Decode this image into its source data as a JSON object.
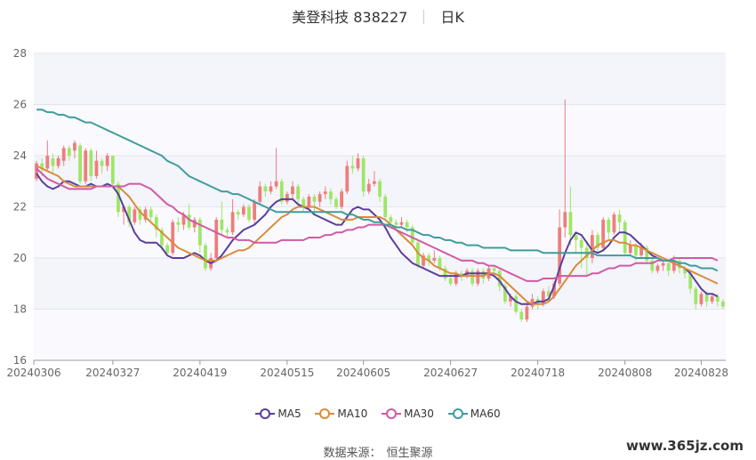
{
  "header": {
    "stock": "美登科技 838227",
    "period": "日K"
  },
  "chart_data": {
    "type": "candlestick",
    "ylim": [
      16,
      28
    ],
    "yticks": [
      16,
      18,
      20,
      22,
      24,
      26,
      28
    ],
    "x_tick_labels": [
      "20240306",
      "20240327",
      "20240419",
      "20240515",
      "20240605",
      "20240627",
      "20240718",
      "20240808",
      "20240828"
    ],
    "x_tick_index": [
      0,
      14,
      30,
      46,
      60,
      76,
      92,
      108,
      122
    ],
    "up_color": "#ee7d7d",
    "down_color": "#9ee667",
    "candles": [
      [
        23.1,
        23.7,
        23.8,
        23.0
      ],
      [
        23.7,
        23.5,
        23.9,
        23.2
      ],
      [
        23.5,
        24.0,
        24.6,
        23.4
      ],
      [
        23.9,
        23.6,
        24.1,
        23.3
      ],
      [
        23.6,
        23.9,
        24.0,
        23.5
      ],
      [
        23.8,
        24.3,
        24.4,
        23.6
      ],
      [
        24.3,
        24.0,
        24.4,
        23.8
      ],
      [
        24.2,
        24.5,
        24.6,
        23.9
      ],
      [
        24.4,
        23.0,
        24.5,
        22.9
      ],
      [
        23.0,
        24.2,
        24.3,
        22.9
      ],
      [
        24.2,
        23.2,
        24.3,
        23.0
      ],
      [
        23.2,
        23.8,
        24.2,
        23.1
      ],
      [
        23.8,
        23.6,
        23.9,
        23.3
      ],
      [
        23.6,
        24.0,
        24.1,
        23.4
      ],
      [
        24.0,
        22.9,
        24.0,
        22.7
      ],
      [
        22.9,
        21.8,
        23.0,
        21.6
      ],
      [
        21.8,
        22.0,
        22.1,
        21.3
      ],
      [
        22.0,
        21.4,
        22.1,
        21.2
      ],
      [
        21.4,
        21.9,
        22.0,
        21.3
      ],
      [
        21.9,
        21.5,
        22.0,
        21.3
      ],
      [
        21.5,
        21.9,
        22.0,
        21.4
      ],
      [
        21.9,
        21.6,
        22.0,
        21.4
      ],
      [
        21.6,
        21.1,
        21.7,
        20.8
      ],
      [
        21.1,
        20.5,
        21.2,
        20.3
      ],
      [
        20.5,
        20.2,
        20.6,
        20.1
      ],
      [
        20.2,
        21.4,
        21.5,
        20.1
      ],
      [
        21.4,
        21.3,
        21.6,
        21.0
      ],
      [
        21.3,
        21.7,
        21.8,
        21.1
      ],
      [
        21.7,
        21.2,
        22.1,
        21.1
      ],
      [
        21.2,
        21.5,
        21.6,
        21.0
      ],
      [
        21.5,
        20.5,
        21.6,
        20.2
      ],
      [
        20.5,
        19.6,
        20.6,
        19.5
      ],
      [
        19.6,
        20.0,
        20.2,
        19.5
      ],
      [
        20.0,
        21.5,
        21.6,
        19.9
      ],
      [
        21.5,
        21.1,
        22.2,
        20.9
      ],
      [
        21.1,
        21.0,
        21.2,
        20.8
      ],
      [
        21.0,
        21.8,
        22.3,
        20.9
      ],
      [
        21.8,
        21.7,
        21.9,
        21.5
      ],
      [
        21.7,
        22.0,
        22.1,
        21.6
      ],
      [
        22.0,
        21.5,
        22.1,
        21.4
      ],
      [
        21.5,
        22.2,
        22.3,
        21.3
      ],
      [
        22.2,
        22.8,
        23.0,
        22.1
      ],
      [
        22.8,
        22.6,
        22.9,
        22.4
      ],
      [
        22.6,
        22.8,
        23.0,
        22.5
      ],
      [
        22.8,
        23.0,
        24.3,
        22.7
      ],
      [
        23.0,
        22.2,
        23.1,
        22.1
      ],
      [
        22.2,
        22.5,
        22.6,
        22.1
      ],
      [
        22.5,
        22.8,
        23.0,
        22.3
      ],
      [
        22.8,
        22.3,
        22.9,
        22.0
      ],
      [
        22.3,
        22.0,
        22.4,
        21.8
      ],
      [
        22.0,
        22.4,
        22.5,
        21.9
      ],
      [
        22.4,
        22.2,
        22.5,
        21.8
      ],
      [
        22.2,
        22.5,
        22.6,
        22.0
      ],
      [
        22.5,
        22.6,
        22.8,
        22.3
      ],
      [
        22.6,
        22.3,
        22.7,
        22.1
      ],
      [
        22.3,
        22.0,
        22.4,
        21.9
      ],
      [
        22.0,
        22.6,
        22.7,
        21.9
      ],
      [
        22.6,
        23.6,
        23.8,
        22.5
      ],
      [
        23.6,
        23.5,
        24.0,
        23.3
      ],
      [
        23.5,
        23.9,
        24.1,
        23.4
      ],
      [
        23.9,
        22.6,
        24.0,
        22.4
      ],
      [
        22.6,
        22.9,
        23.1,
        22.5
      ],
      [
        22.9,
        23.0,
        23.4,
        22.8
      ],
      [
        23.0,
        22.4,
        23.1,
        22.2
      ],
      [
        22.4,
        21.6,
        22.5,
        21.5
      ],
      [
        21.6,
        21.4,
        21.7,
        21.3
      ],
      [
        21.4,
        21.3,
        21.5,
        21.2
      ],
      [
        21.3,
        21.4,
        21.6,
        21.2
      ],
      [
        21.4,
        21.2,
        21.5,
        21.0
      ],
      [
        21.2,
        20.6,
        21.3,
        20.5
      ],
      [
        20.6,
        19.7,
        20.7,
        19.6
      ],
      [
        19.7,
        20.1,
        20.2,
        19.6
      ],
      [
        20.1,
        19.9,
        20.2,
        19.7
      ],
      [
        19.9,
        20.0,
        20.3,
        19.8
      ],
      [
        20.0,
        19.6,
        20.1,
        19.5
      ],
      [
        19.6,
        19.2,
        19.7,
        19.1
      ],
      [
        19.2,
        19.0,
        19.3,
        18.9
      ],
      [
        19.0,
        19.4,
        19.5,
        18.9
      ],
      [
        19.4,
        19.3,
        19.5,
        19.1
      ],
      [
        19.3,
        19.5,
        19.6,
        19.2
      ],
      [
        19.5,
        19.0,
        19.6,
        18.9
      ],
      [
        19.0,
        19.5,
        19.6,
        18.9
      ],
      [
        19.5,
        19.2,
        19.6,
        19.0
      ],
      [
        19.2,
        19.6,
        19.7,
        19.1
      ],
      [
        19.6,
        19.5,
        19.7,
        19.3
      ],
      [
        19.5,
        18.9,
        19.6,
        18.7
      ],
      [
        18.9,
        18.3,
        19.0,
        18.2
      ],
      [
        18.3,
        18.5,
        18.6,
        18.1
      ],
      [
        18.5,
        17.9,
        18.6,
        17.8
      ],
      [
        17.9,
        17.6,
        18.0,
        17.5
      ],
      [
        17.6,
        18.1,
        18.3,
        17.5
      ],
      [
        18.1,
        18.4,
        18.6,
        18.0
      ],
      [
        18.4,
        18.2,
        18.5,
        18.0
      ],
      [
        18.2,
        18.7,
        18.8,
        18.1
      ],
      [
        18.7,
        18.5,
        18.9,
        18.3
      ],
      [
        18.5,
        19.0,
        19.1,
        18.4
      ],
      [
        19.0,
        21.2,
        21.9,
        18.9
      ],
      [
        21.2,
        21.8,
        26.2,
        20.8
      ],
      [
        21.8,
        20.9,
        22.8,
        20.5
      ],
      [
        20.9,
        20.7,
        21.0,
        20.2
      ],
      [
        20.7,
        20.4,
        20.8,
        19.6
      ],
      [
        20.4,
        20.0,
        20.6,
        19.3
      ],
      [
        20.0,
        20.9,
        21.1,
        19.8
      ],
      [
        20.9,
        20.4,
        21.0,
        20.2
      ],
      [
        20.4,
        21.5,
        21.6,
        20.3
      ],
      [
        21.5,
        21.0,
        21.6,
        20.7
      ],
      [
        21.0,
        21.7,
        21.8,
        20.9
      ],
      [
        21.7,
        21.4,
        21.9,
        21.0
      ],
      [
        21.4,
        20.2,
        21.5,
        20.1
      ],
      [
        20.2,
        20.5,
        20.7,
        20.1
      ],
      [
        20.5,
        20.1,
        20.6,
        19.9
      ],
      [
        20.1,
        20.4,
        20.6,
        20.0
      ],
      [
        20.4,
        19.9,
        20.5,
        19.8
      ],
      [
        19.9,
        19.5,
        20.0,
        19.4
      ],
      [
        19.5,
        19.7,
        19.8,
        19.4
      ],
      [
        19.7,
        19.8,
        19.9,
        19.5
      ],
      [
        19.8,
        19.5,
        19.9,
        19.3
      ],
      [
        19.5,
        19.9,
        20.1,
        19.4
      ],
      [
        19.9,
        19.6,
        20.0,
        19.4
      ],
      [
        19.6,
        19.4,
        19.7,
        19.2
      ],
      [
        19.4,
        18.8,
        19.5,
        18.6
      ],
      [
        18.8,
        18.2,
        18.9,
        18.0
      ],
      [
        18.2,
        18.6,
        18.7,
        18.1
      ],
      [
        18.6,
        18.3,
        18.7,
        18.1
      ],
      [
        18.3,
        18.5,
        18.6,
        18.2
      ],
      [
        18.5,
        18.3,
        18.6,
        18.1
      ],
      [
        18.3,
        18.1,
        18.4,
        18.0
      ]
    ],
    "series": [
      {
        "name": "MA5",
        "color": "#5b3d9c",
        "values": [
          23.3,
          23.0,
          22.8,
          22.7,
          22.8,
          23.0,
          23.0,
          22.9,
          22.8,
          22.8,
          22.9,
          22.8,
          22.8,
          22.9,
          22.8,
          22.5,
          22.0,
          21.5,
          21.0,
          20.7,
          20.6,
          20.6,
          20.6,
          20.4,
          20.1,
          20.0,
          20.0,
          20.0,
          20.1,
          20.2,
          20.1,
          19.9,
          19.8,
          19.9,
          20.1,
          20.4,
          20.7,
          20.9,
          21.1,
          21.2,
          21.3,
          21.5,
          21.7,
          22.0,
          22.2,
          22.3,
          22.3,
          22.3,
          22.1,
          22.0,
          21.9,
          21.7,
          21.6,
          21.5,
          21.4,
          21.3,
          21.3,
          21.6,
          21.9,
          22.0,
          21.9,
          21.9,
          21.7,
          21.5,
          21.2,
          20.8,
          20.5,
          20.2,
          20.0,
          19.8,
          19.7,
          19.6,
          19.5,
          19.4,
          19.3,
          19.3,
          19.3,
          19.3,
          19.3,
          19.4,
          19.4,
          19.4,
          19.4,
          19.4,
          19.3,
          19.1,
          18.8,
          18.5,
          18.3,
          18.2,
          18.2,
          18.2,
          18.3,
          18.3,
          18.4,
          18.9,
          19.6,
          20.2,
          20.7,
          21.0,
          20.9,
          20.6,
          20.3,
          20.2,
          20.3,
          20.5,
          20.8,
          21.0,
          21.0,
          20.9,
          20.7,
          20.5,
          20.3,
          20.1,
          20.0,
          19.9,
          19.9,
          19.8,
          19.7,
          19.6,
          19.4,
          19.1,
          18.8,
          18.6,
          18.6,
          18.5
        ]
      },
      {
        "name": "MA10",
        "color": "#d98c3a",
        "values": [
          23.6,
          23.5,
          23.4,
          23.3,
          23.2,
          23.0,
          22.9,
          22.8,
          22.8,
          22.8,
          22.8,
          22.8,
          22.8,
          22.8,
          22.8,
          22.8,
          22.6,
          22.4,
          22.1,
          21.8,
          21.6,
          21.4,
          21.2,
          21.0,
          20.8,
          20.6,
          20.4,
          20.3,
          20.2,
          20.1,
          20.0,
          19.9,
          19.9,
          19.9,
          20.0,
          20.1,
          20.2,
          20.3,
          20.3,
          20.4,
          20.6,
          20.8,
          21.0,
          21.2,
          21.4,
          21.6,
          21.7,
          21.9,
          22.0,
          22.0,
          22.0,
          22.0,
          21.9,
          21.8,
          21.7,
          21.6,
          21.5,
          21.5,
          21.5,
          21.6,
          21.6,
          21.6,
          21.6,
          21.6,
          21.5,
          21.3,
          21.1,
          20.9,
          20.7,
          20.5,
          20.2,
          20.0,
          19.9,
          19.7,
          19.6,
          19.5,
          19.4,
          19.4,
          19.3,
          19.3,
          19.3,
          19.3,
          19.3,
          19.4,
          19.4,
          19.3,
          19.1,
          18.9,
          18.7,
          18.5,
          18.3,
          18.2,
          18.2,
          18.2,
          18.3,
          18.5,
          18.8,
          19.1,
          19.4,
          19.7,
          19.9,
          20.1,
          20.3,
          20.5,
          20.6,
          20.7,
          20.7,
          20.6,
          20.6,
          20.5,
          20.5,
          20.4,
          20.3,
          20.2,
          20.1,
          20.0,
          19.9,
          19.8,
          19.7,
          19.6,
          19.5,
          19.4,
          19.3,
          19.2,
          19.1,
          19.0
        ]
      },
      {
        "name": "MA30",
        "color": "#d05aa6",
        "values": [
          23.5,
          23.3,
          23.1,
          23.0,
          22.9,
          22.8,
          22.7,
          22.7,
          22.7,
          22.7,
          22.7,
          22.8,
          22.8,
          22.8,
          22.8,
          22.8,
          22.8,
          22.9,
          22.9,
          22.9,
          22.8,
          22.7,
          22.5,
          22.3,
          22.1,
          22.0,
          21.8,
          21.7,
          21.5,
          21.4,
          21.3,
          21.2,
          21.1,
          21.0,
          20.9,
          20.8,
          20.8,
          20.7,
          20.7,
          20.7,
          20.6,
          20.6,
          20.6,
          20.6,
          20.6,
          20.7,
          20.7,
          20.7,
          20.7,
          20.7,
          20.8,
          20.8,
          20.8,
          20.9,
          20.9,
          21.0,
          21.0,
          21.1,
          21.1,
          21.2,
          21.2,
          21.3,
          21.3,
          21.3,
          21.3,
          21.2,
          21.1,
          21.0,
          20.9,
          20.8,
          20.7,
          20.6,
          20.5,
          20.4,
          20.3,
          20.2,
          20.1,
          20.0,
          19.9,
          19.9,
          19.9,
          19.8,
          19.8,
          19.7,
          19.7,
          19.6,
          19.5,
          19.4,
          19.3,
          19.2,
          19.1,
          19.1,
          19.1,
          19.2,
          19.2,
          19.2,
          19.3,
          19.3,
          19.3,
          19.3,
          19.3,
          19.3,
          19.4,
          19.4,
          19.5,
          19.6,
          19.6,
          19.7,
          19.7,
          19.7,
          19.8,
          19.8,
          19.8,
          19.8,
          19.9,
          19.9,
          19.9,
          20.0,
          20.0,
          20.0,
          20.0,
          20.0,
          20.0,
          20.0,
          20.0,
          19.9
        ]
      },
      {
        "name": "MA60",
        "color": "#3f9c9c",
        "values": [
          25.8,
          25.8,
          25.7,
          25.7,
          25.6,
          25.6,
          25.5,
          25.5,
          25.4,
          25.3,
          25.3,
          25.2,
          25.1,
          25.0,
          24.9,
          24.8,
          24.7,
          24.6,
          24.5,
          24.4,
          24.3,
          24.2,
          24.1,
          24.0,
          23.8,
          23.7,
          23.6,
          23.4,
          23.2,
          23.1,
          23.0,
          22.9,
          22.8,
          22.7,
          22.6,
          22.6,
          22.5,
          22.5,
          22.4,
          22.3,
          22.2,
          22.1,
          22.0,
          21.9,
          21.8,
          21.8,
          21.8,
          21.8,
          21.8,
          21.8,
          21.8,
          21.8,
          21.8,
          21.8,
          21.8,
          21.8,
          21.8,
          21.7,
          21.7,
          21.6,
          21.5,
          21.5,
          21.4,
          21.4,
          21.3,
          21.3,
          21.2,
          21.2,
          21.1,
          21.1,
          21.0,
          20.9,
          20.9,
          20.8,
          20.8,
          20.7,
          20.7,
          20.6,
          20.6,
          20.5,
          20.5,
          20.5,
          20.4,
          20.4,
          20.4,
          20.4,
          20.4,
          20.3,
          20.3,
          20.3,
          20.3,
          20.3,
          20.3,
          20.2,
          20.2,
          20.2,
          20.2,
          20.2,
          20.2,
          20.2,
          20.2,
          20.2,
          20.2,
          20.1,
          20.1,
          20.1,
          20.1,
          20.1,
          20.1,
          20.1,
          20.0,
          20.0,
          20.0,
          20.0,
          20.0,
          19.9,
          19.9,
          19.9,
          19.8,
          19.8,
          19.7,
          19.7,
          19.6,
          19.6,
          19.6,
          19.5
        ]
      }
    ]
  },
  "legend": {
    "items": [
      {
        "label": "MA5",
        "color": "#5b3d9c"
      },
      {
        "label": "MA10",
        "color": "#d98c3a"
      },
      {
        "label": "MA30",
        "color": "#d05aa6"
      },
      {
        "label": "MA60",
        "color": "#3f9c9c"
      }
    ]
  },
  "footer": {
    "source_label": "数据来源：",
    "source_name": "恒生聚源"
  },
  "watermark": "www.365jz.com"
}
